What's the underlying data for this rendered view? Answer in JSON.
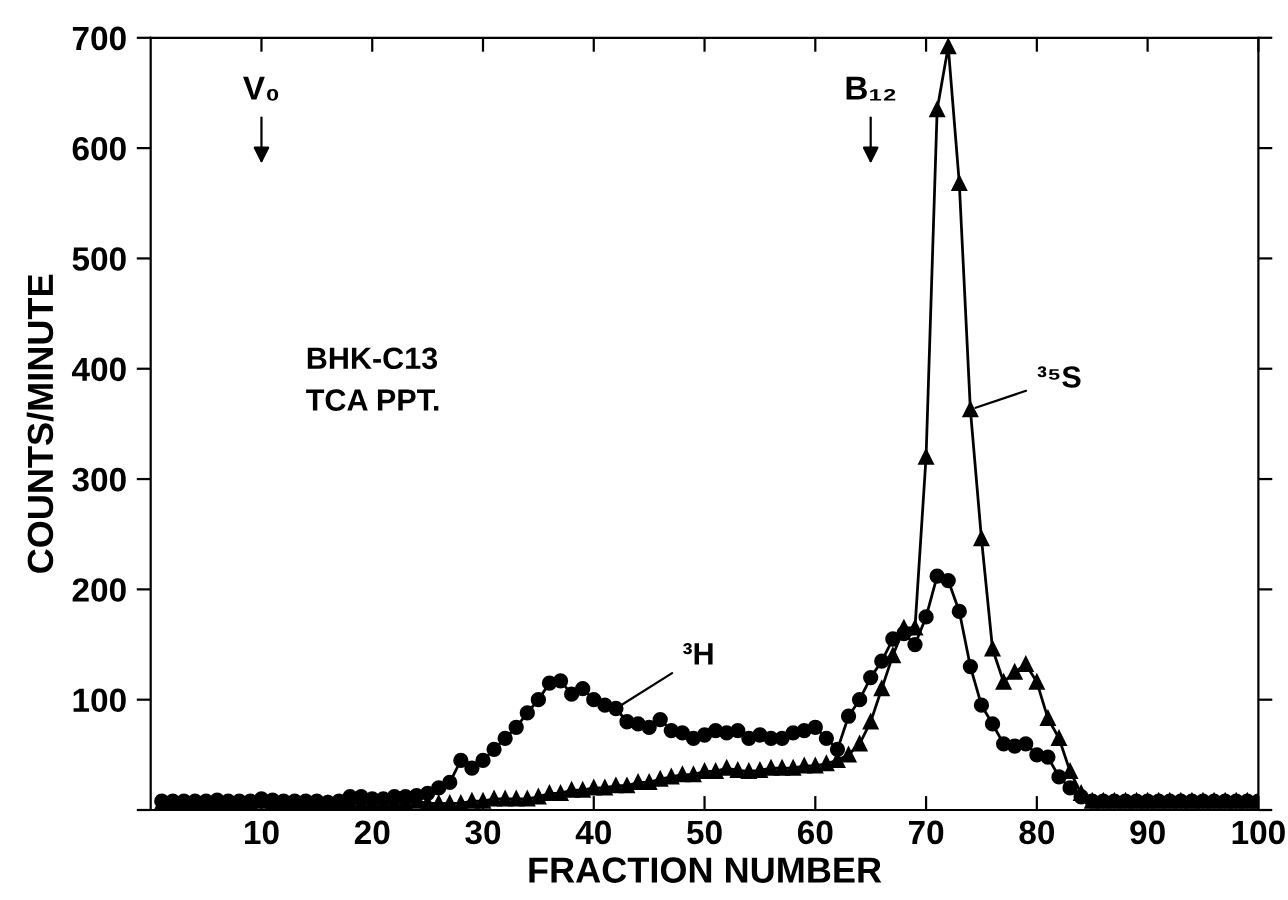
{
  "chart_data": {
    "type": "line",
    "xlabel": "FRACTION NUMBER",
    "ylabel": "COUNTS/MINUTE",
    "x": [
      1,
      2,
      3,
      4,
      5,
      6,
      7,
      8,
      9,
      10,
      11,
      12,
      13,
      14,
      15,
      16,
      17,
      18,
      19,
      20,
      21,
      22,
      23,
      24,
      25,
      26,
      27,
      28,
      29,
      30,
      31,
      32,
      33,
      34,
      35,
      36,
      37,
      38,
      39,
      40,
      41,
      42,
      43,
      44,
      45,
      46,
      47,
      48,
      49,
      50,
      51,
      52,
      53,
      54,
      55,
      56,
      57,
      58,
      59,
      60,
      61,
      62,
      63,
      64,
      65,
      66,
      67,
      68,
      69,
      70,
      71,
      72,
      73,
      74,
      75,
      76,
      77,
      78,
      79,
      80,
      81,
      82,
      83,
      84,
      85,
      86,
      87,
      88,
      89,
      90,
      91,
      92,
      93,
      94,
      95,
      96,
      97,
      98,
      99,
      100
    ],
    "series": [
      {
        "name": "³H",
        "color": "#000000",
        "marker": "circle",
        "values": [
          8,
          8,
          8,
          8,
          8,
          9,
          8,
          8,
          8,
          10,
          9,
          8,
          8,
          8,
          8,
          7,
          8,
          12,
          12,
          10,
          10,
          12,
          12,
          13,
          15,
          20,
          25,
          45,
          38,
          45,
          55,
          65,
          75,
          88,
          100,
          115,
          117,
          105,
          110,
          100,
          95,
          92,
          80,
          78,
          75,
          82,
          72,
          70,
          65,
          68,
          72,
          70,
          72,
          65,
          68,
          65,
          65,
          70,
          72,
          75,
          65,
          55,
          85,
          100,
          120,
          135,
          155,
          160,
          150,
          175,
          212,
          208,
          180,
          130,
          95,
          78,
          60,
          58,
          60,
          50,
          48,
          30,
          20,
          12,
          8,
          8,
          8,
          8,
          8,
          8,
          8,
          8,
          8,
          8,
          8,
          8,
          8,
          8,
          8,
          8
        ]
      },
      {
        "name": "³⁵S",
        "color": "#000000",
        "marker": "triangle",
        "values": [
          6,
          6,
          6,
          6,
          6,
          6,
          6,
          6,
          6,
          8,
          6,
          6,
          6,
          6,
          6,
          6,
          6,
          6,
          6,
          6,
          6,
          6,
          6,
          8,
          6,
          6,
          6,
          6,
          8,
          8,
          10,
          10,
          10,
          10,
          12,
          15,
          15,
          18,
          18,
          20,
          20,
          22,
          22,
          25,
          25,
          28,
          30,
          32,
          32,
          35,
          35,
          38,
          36,
          35,
          36,
          38,
          38,
          38,
          40,
          40,
          42,
          45,
          50,
          60,
          80,
          110,
          140,
          165,
          165,
          320,
          635,
          692,
          568,
          363,
          246,
          146,
          116,
          125,
          132,
          116,
          83,
          65,
          35,
          15,
          8,
          8,
          8,
          8,
          8,
          8,
          8,
          8,
          8,
          8,
          8,
          8,
          8,
          8,
          8,
          8
        ]
      }
    ],
    "xlim": [
      0,
      100
    ],
    "ylim": [
      0,
      700
    ],
    "xticks": [
      10,
      20,
      30,
      40,
      50,
      60,
      70,
      80,
      90,
      100
    ],
    "yticks": [
      {
        "value": 0,
        "label": null
      },
      100,
      200,
      300,
      400,
      500,
      600,
      700
    ],
    "grid": false,
    "legend": false,
    "line_style": "solid",
    "annotations": [
      "V₀",
      "B₁₂",
      "BHK-C13\nTCA PPT."
    ]
  }
}
